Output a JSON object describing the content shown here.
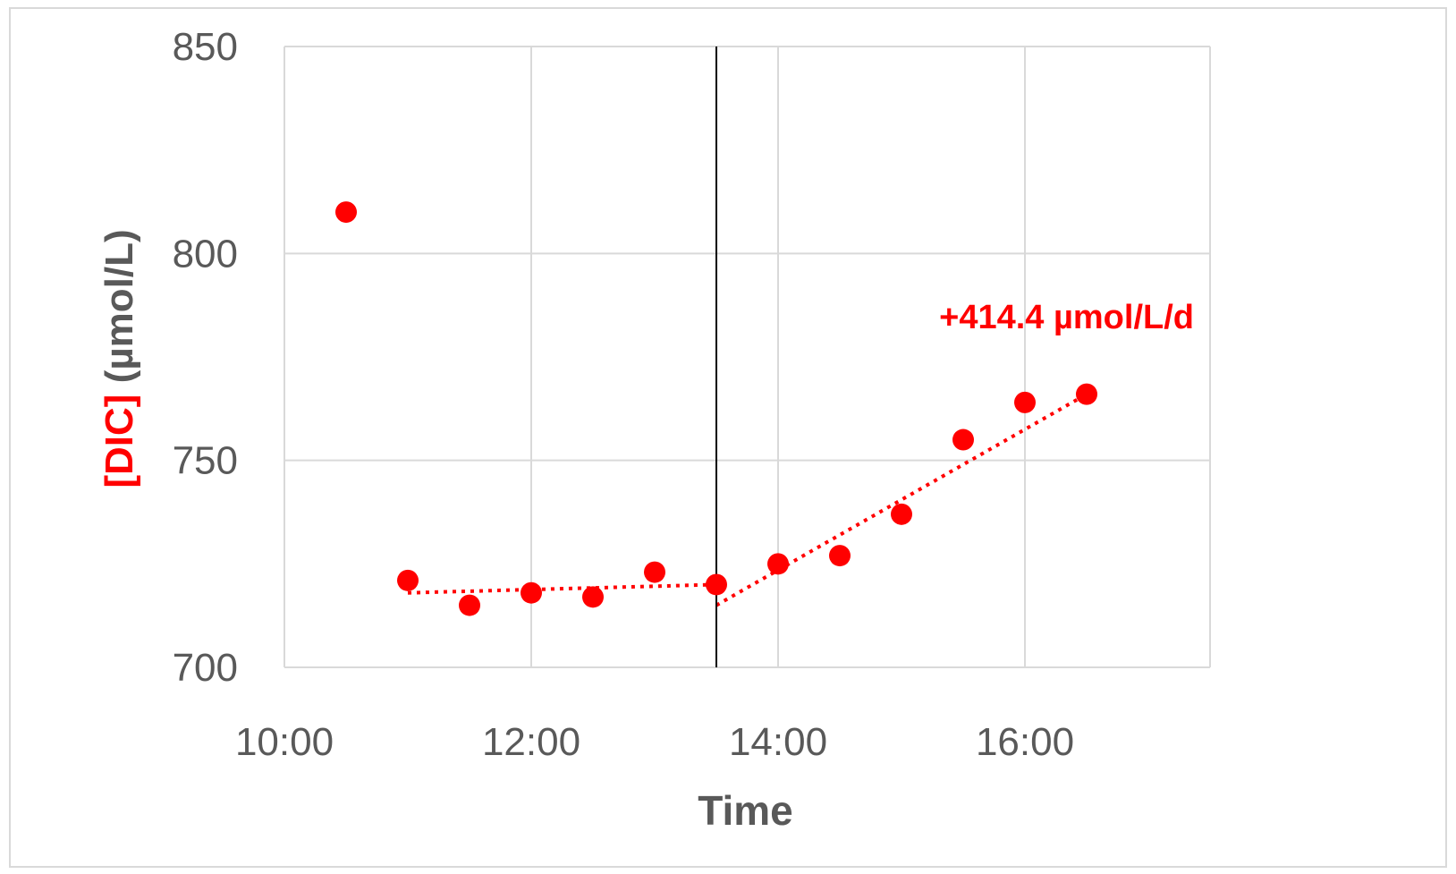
{
  "chart_data": {
    "type": "scatter",
    "title": "",
    "xlabel": "Time",
    "ylabel_prefix": "[DIC]",
    "ylabel_suffix": " (µmol/L)",
    "xlim": [
      "10:00",
      "17:30"
    ],
    "ylim": [
      700,
      850
    ],
    "x_ticks": [
      "10:00",
      "12:00",
      "14:00",
      "16:00"
    ],
    "y_ticks": [
      700,
      750,
      800,
      850
    ],
    "grid": true,
    "legend": "none",
    "series": [
      {
        "color": "#ff0000",
        "points": [
          {
            "x": "10:30",
            "y": 810
          },
          {
            "x": "11:00",
            "y": 721
          },
          {
            "x": "11:30",
            "y": 715
          },
          {
            "x": "12:00",
            "y": 718
          },
          {
            "x": "12:30",
            "y": 717
          },
          {
            "x": "13:00",
            "y": 723
          },
          {
            "x": "13:30",
            "y": 720
          },
          {
            "x": "14:00",
            "y": 725
          },
          {
            "x": "14:30",
            "y": 727
          },
          {
            "x": "15:00",
            "y": 737
          },
          {
            "x": "15:30",
            "y": 755
          },
          {
            "x": "16:00",
            "y": 764
          },
          {
            "x": "16:30",
            "y": 766
          }
        ]
      }
    ],
    "trendlines": [
      {
        "color": "#ff0000",
        "style": "dotted",
        "from": {
          "x": "11:00",
          "y": 718
        },
        "to": {
          "x": "13:30",
          "y": 720
        }
      },
      {
        "color": "#ff0000",
        "style": "dotted",
        "from": {
          "x": "13:30",
          "y": 715
        },
        "to": {
          "x": "16:30",
          "y": 766
        }
      }
    ],
    "vertical_line": {
      "x": "13:30",
      "color": "#000000"
    },
    "annotations": [
      {
        "text": "+414.4 µmol/L/d",
        "color": "#ff0000"
      }
    ]
  }
}
